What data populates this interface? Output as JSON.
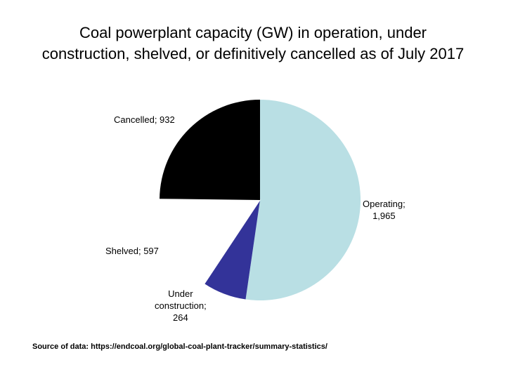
{
  "chart_data": {
    "type": "pie",
    "title_line1": "Coal powerplant capacity (GW) in operation, under",
    "title_line2": "construction, shelved, or definitively cancelled as of July 2017",
    "slices": [
      {
        "name": "Operating",
        "value": 1965,
        "value_label": "1,965",
        "color": "#b9dfe4",
        "label_line1": "Operating;",
        "label_line2": "1,965"
      },
      {
        "name": "Under construction",
        "value": 264,
        "value_label": "264",
        "color": "#333399",
        "label_line1": "Under",
        "label_line2": "construction;",
        "label_line3": "264"
      },
      {
        "name": "Shelved",
        "value": 597,
        "value_label": "597",
        "color": "#ffffff",
        "label_line1": "Shelved; 597"
      },
      {
        "name": "Cancelled",
        "value": 932,
        "value_label": "932",
        "color": "#000000",
        "label_line1": "Cancelled; 932"
      }
    ],
    "source": "Source of data: https://endcoal.org/global-coal-plant-tracker/summary-statistics/"
  }
}
